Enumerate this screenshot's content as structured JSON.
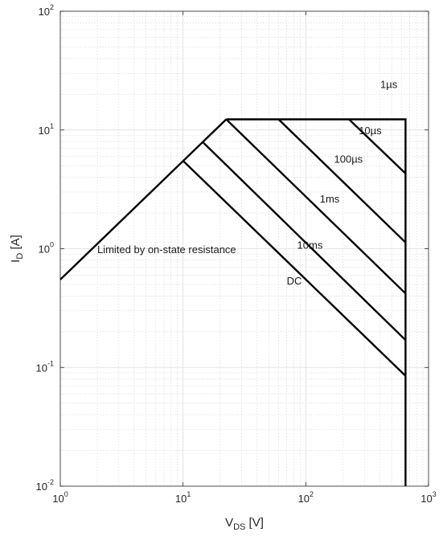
{
  "chart_data": {
    "type": "line",
    "x_scale": "log",
    "y_scale": "log",
    "xlim": [
      1,
      1000
    ],
    "ylim": [
      0.01,
      100
    ],
    "grid": true,
    "minor_grid": true,
    "x_ticks": [
      {
        "base": "10",
        "exp": "0",
        "value": 1
      },
      {
        "base": "10",
        "exp": "1",
        "value": 10
      },
      {
        "base": "10",
        "exp": "2",
        "value": 100
      },
      {
        "base": "10",
        "exp": "3",
        "value": 1000
      }
    ],
    "y_ticks": [
      {
        "base": "10",
        "exp": "-2",
        "value": 0.01
      },
      {
        "base": "10",
        "exp": "-1",
        "value": 0.1
      },
      {
        "base": "10",
        "exp": "0",
        "value": 1
      },
      {
        "base": "10",
        "exp": "1",
        "value": 10
      },
      {
        "base": "10",
        "exp": "2",
        "value": 100
      }
    ],
    "xlabel": {
      "main": "V",
      "sub": "DS",
      "rest": " [V]"
    },
    "ylabel": {
      "main": "I",
      "sub": "D",
      "rest": " [A]"
    },
    "series": [
      {
        "name": "Limited by on-state resistance",
        "x": [
          1,
          22.5
        ],
        "y": [
          0.55,
          12.3
        ]
      },
      {
        "name": "1µs",
        "x": [
          22.5,
          650,
          650
        ],
        "y": [
          12.3,
          12.3,
          0.01
        ]
      },
      {
        "name": "10µs",
        "x": [
          225,
          650
        ],
        "y": [
          12.3,
          4.3
        ]
      },
      {
        "name": "100µs",
        "x": [
          60,
          650
        ],
        "y": [
          12.3,
          1.13
        ]
      },
      {
        "name": "1ms",
        "x": [
          22.5,
          650
        ],
        "y": [
          12.3,
          0.42
        ]
      },
      {
        "name": "10ms",
        "x": [
          14.5,
          650
        ],
        "y": [
          7.9,
          0.17
        ]
      },
      {
        "name": "DC",
        "x": [
          10,
          650
        ],
        "y": [
          5.5,
          0.085
        ]
      }
    ],
    "annotations": [
      {
        "text": "Limited by on-state resistance",
        "x": 2.0,
        "y": 0.92,
        "anchor": "start"
      },
      {
        "text": "1µs",
        "x": 475,
        "y": 22.5,
        "anchor": "middle"
      },
      {
        "text": "10µs",
        "x": 270,
        "y": 9.2,
        "anchor": "start"
      },
      {
        "text": "100µs",
        "x": 170,
        "y": 5.3,
        "anchor": "start"
      },
      {
        "text": "1ms",
        "x": 130,
        "y": 2.45,
        "anchor": "start"
      },
      {
        "text": "10ms",
        "x": 85,
        "y": 1.0,
        "anchor": "start"
      },
      {
        "text": "DC",
        "x": 70,
        "y": 0.5,
        "anchor": "start"
      }
    ]
  }
}
